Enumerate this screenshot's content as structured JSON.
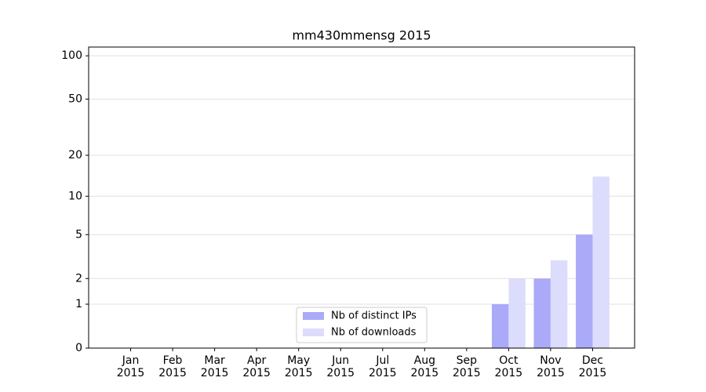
{
  "chart_data": {
    "type": "bar",
    "title": "mm430mmensg 2015",
    "categories": [
      "Jan\n2015",
      "Feb\n2015",
      "Mar\n2015",
      "Apr\n2015",
      "May\n2015",
      "Jun\n2015",
      "Jul\n2015",
      "Aug\n2015",
      "Sep\n2015",
      "Oct\n2015",
      "Nov\n2015",
      "Dec\n2015"
    ],
    "series": [
      {
        "name": "Nb of distinct IPs",
        "color": "#aaaaf9",
        "values": [
          0,
          0,
          0,
          0,
          0,
          0,
          0,
          0,
          0,
          1,
          2,
          5
        ]
      },
      {
        "name": "Nb of downloads",
        "color": "#dcdcfc",
        "values": [
          0,
          0,
          0,
          0,
          0,
          0,
          0,
          0,
          0,
          2,
          3,
          14
        ]
      }
    ],
    "yscale": "log1p",
    "ylim": [
      0,
      115
    ],
    "yticks": [
      0,
      1,
      2,
      5,
      10,
      20,
      50,
      100
    ],
    "grid": true,
    "legend": "lower center"
  }
}
